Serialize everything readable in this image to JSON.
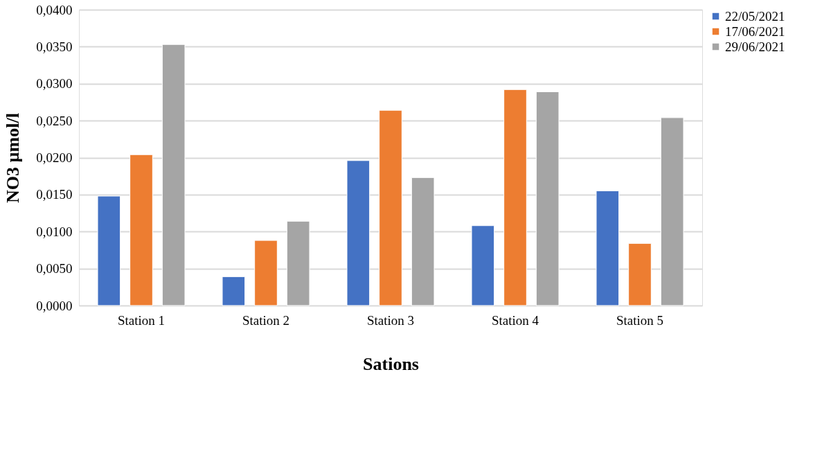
{
  "chart_data": {
    "type": "bar",
    "xlabel": "Sations",
    "ylabel": "NO3 µmol/l",
    "categories": [
      "Station 1",
      "Station 2",
      "Station 3",
      "Station 4",
      "Station 5"
    ],
    "series": [
      {
        "name": "22/05/2021",
        "color": "#4472c4",
        "values": [
          0.0148,
          0.0039,
          0.0196,
          0.0108,
          0.0155
        ]
      },
      {
        "name": "17/06/2021",
        "color": "#ed7d31",
        "values": [
          0.0204,
          0.0088,
          0.0264,
          0.0292,
          0.0084
        ]
      },
      {
        "name": "29/06/2021",
        "color": "#a5a5a5",
        "values": [
          0.0353,
          0.0114,
          0.0173,
          0.0289,
          0.0254
        ]
      }
    ],
    "ylim": [
      0,
      0.04
    ],
    "yticks": [
      {
        "value": 0,
        "label": "0,0000"
      },
      {
        "value": 0.005,
        "label": "0,0050"
      },
      {
        "value": 0.01,
        "label": "0,0100"
      },
      {
        "value": 0.015,
        "label": "0,0150"
      },
      {
        "value": 0.02,
        "label": "0,0200"
      },
      {
        "value": 0.025,
        "label": "0,0250"
      },
      {
        "value": 0.03,
        "label": "0,0300"
      },
      {
        "value": 0.035,
        "label": "0,0350"
      },
      {
        "value": 0.04,
        "label": "0,0400"
      }
    ],
    "grid": "y",
    "legend": "right"
  }
}
